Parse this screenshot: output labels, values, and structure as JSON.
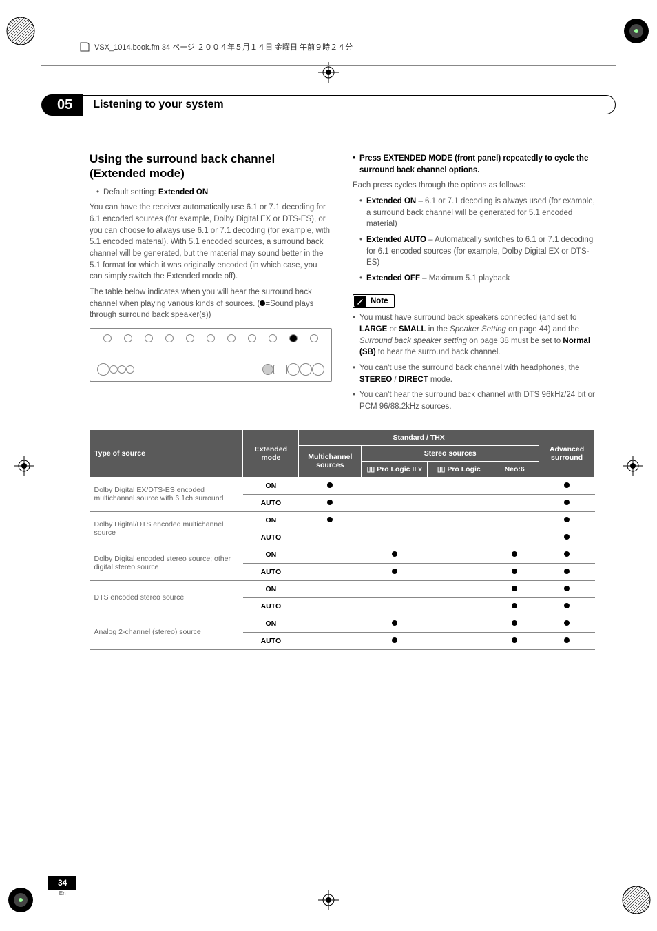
{
  "meta": {
    "header_text": "VSX_1014.book.fm 34 ページ ２００４年５月１４日 金曜日 午前９時２４分",
    "page_number": "34",
    "page_lang": "En"
  },
  "chapter": {
    "number": "05",
    "title": "Listening to your system"
  },
  "left": {
    "heading": "Using the surround back channel (Extended mode)",
    "default_label": "Default setting:",
    "default_value": "Extended ON",
    "p1": "You can have the receiver automatically use 6.1 or 7.1 decoding for 6.1 encoded sources (for example, Dolby Digital EX or DTS-ES), or you can choose to always use 6.1 or 7.1 decoding (for example, with 5.1 encoded material). With 5.1 encoded sources, a surround back channel will be generated, but the material may sound better in the 5.1 format for which it was originally encoded (in which case, you can simply switch the Extended mode off).",
    "p2_a": "The table below indicates when you will hear the surround back channel when playing various kinds of sources. (",
    "p2_b": "=Sound plays through surround back speaker(s))"
  },
  "right": {
    "lead_a": "Press EXTENDED MODE (front panel) repeatedly to cycle the surround back channel options.",
    "lead_b": "Each press cycles through the options as follows:",
    "b1_label": "Extended ON",
    "b1_text": " – 6.1 or 7.1 decoding is always used (for example, a  surround back channel will be generated for 5.1 encoded material)",
    "b2_label": "Extended AUTO",
    "b2_text": " – Automatically switches to 6.1 or 7.1 decoding for 6.1 encoded sources (for example, Dolby Digital EX or DTS-ES)",
    "b3_label": "Extended OFF",
    "b3_text": " – Maximum 5.1 playback",
    "note_label": "Note",
    "n1_a": "You must have surround back speakers connected (and set to ",
    "n1_b": "LARGE",
    "n1_c": " or ",
    "n1_d": "SMALL",
    "n1_e": " in the ",
    "n1_f": "Speaker Setting",
    "n1_g": " on page 44) and the ",
    "n1_h": "Surround back speaker setting",
    "n1_i": " on page 38 must be set to ",
    "n1_j": "Normal (SB)",
    "n1_k": " to hear the surround back channel.",
    "n2_a": "You can't use the surround back channel with headphones, the ",
    "n2_b": "STEREO",
    "n2_c": " / ",
    "n2_d": "DIRECT",
    "n2_e": " mode.",
    "n3": "You can't hear the surround back channel with DTS 96kHz/24 bit or PCM 96/88.2kHz sources."
  },
  "table": {
    "head": {
      "type": "Type of source",
      "ext": "Extended mode",
      "std": "Standard / THX",
      "multi": "Multichannel sources",
      "stereo": "Stereo sources",
      "pl2x": "▯▯ Pro Logic II x",
      "pl": "▯▯ Pro Logic",
      "neo6": "Neo:6",
      "adv": "Advanced surround"
    },
    "rows": [
      {
        "src": "Dolby Digital EX/DTS-ES encoded multichannel source with 6.1ch surround",
        "mode": "ON",
        "cols": [
          1,
          0,
          0,
          0,
          1
        ]
      },
      {
        "src": "",
        "mode": "AUTO",
        "cols": [
          1,
          0,
          0,
          0,
          1
        ]
      },
      {
        "src": "Dolby Digital/DTS encoded multichannel source",
        "mode": "ON",
        "cols": [
          1,
          0,
          0,
          0,
          1
        ]
      },
      {
        "src": "",
        "mode": "AUTO",
        "cols": [
          0,
          0,
          0,
          0,
          1
        ]
      },
      {
        "src": "Dolby Digital encoded stereo source; other digital stereo source",
        "mode": "ON",
        "cols": [
          0,
          1,
          0,
          1,
          1
        ]
      },
      {
        "src": "",
        "mode": "AUTO",
        "cols": [
          0,
          1,
          0,
          1,
          1
        ]
      },
      {
        "src": "DTS encoded stereo source",
        "mode": "ON",
        "cols": [
          0,
          0,
          0,
          1,
          1
        ]
      },
      {
        "src": "",
        "mode": "AUTO",
        "cols": [
          0,
          0,
          0,
          1,
          1
        ]
      },
      {
        "src": "Analog 2-channel (stereo) source",
        "mode": "ON",
        "cols": [
          0,
          1,
          0,
          1,
          1
        ]
      },
      {
        "src": "",
        "mode": "AUTO",
        "cols": [
          0,
          1,
          0,
          1,
          1
        ]
      }
    ]
  },
  "colors": {
    "header_bg": "#5a5a5a",
    "text_gray": "#555555",
    "rule_gray": "#888888"
  }
}
